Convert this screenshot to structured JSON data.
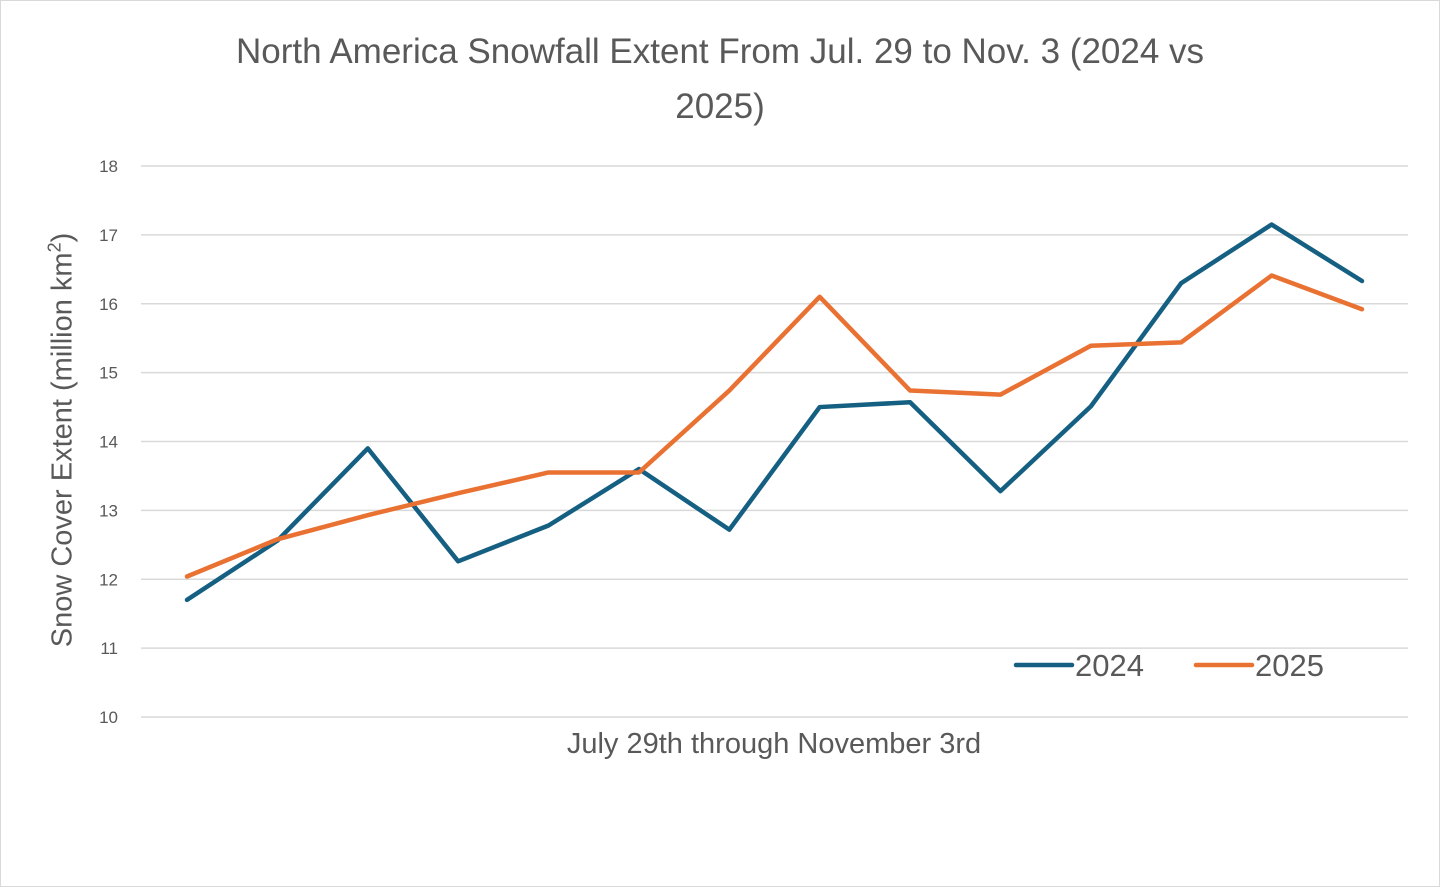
{
  "chart_data": {
    "type": "line",
    "title": "North America Snowfall Extent From Jul. 29 to Nov. 3 (2024 vs 2025)",
    "title_lines": [
      "North America Snowfall Extent From Jul. 29 to Nov. 3 (2024 vs",
      "2025)"
    ],
    "xlabel": "July 29th through November 3rd",
    "ylabel_main": "Snow Cover Extent (million km",
    "ylabel_sup": "2",
    "ylabel_end": ")",
    "ylim": [
      10,
      18
    ],
    "yticks": [
      10,
      11,
      12,
      13,
      14,
      15,
      16,
      17,
      18
    ],
    "grid": true,
    "legend_position": "bottom-right",
    "x": [
      1,
      2,
      3,
      4,
      5,
      6,
      7,
      8,
      9,
      10,
      11,
      12,
      13,
      14
    ],
    "series": [
      {
        "name": "2024",
        "color": "#156082",
        "values": [
          11.7,
          12.56,
          13.9,
          12.26,
          12.78,
          13.6,
          12.72,
          14.5,
          14.57,
          13.28,
          14.51,
          16.3,
          17.15,
          16.33
        ]
      },
      {
        "name": "2025",
        "color": "#E97132",
        "values": [
          12.04,
          12.58,
          12.93,
          13.25,
          13.55,
          13.55,
          14.74,
          16.1,
          14.74,
          14.68,
          15.39,
          15.44,
          16.41,
          15.92
        ]
      }
    ]
  }
}
